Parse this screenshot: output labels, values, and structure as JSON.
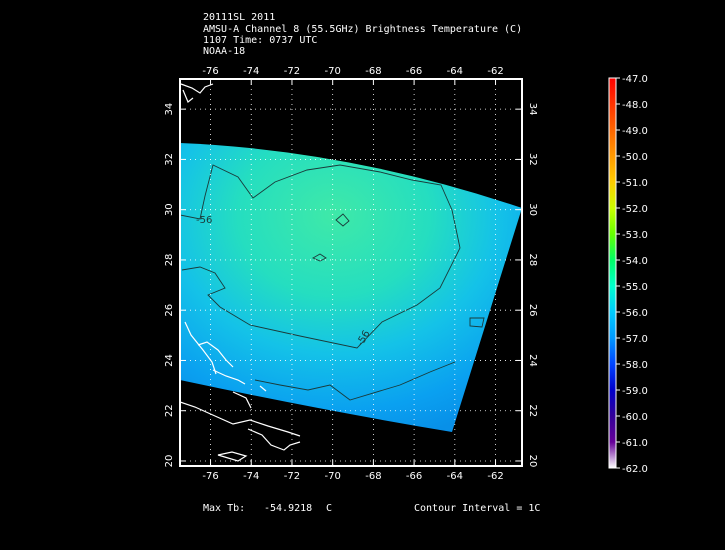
{
  "header": {
    "line1": "20111SL 2011",
    "line2": "AMSU-A Channel 8 (55.5GHz) Brightness Temperature (C)",
    "line3": "1107 Time: 0737 UTC",
    "line4": "NOAA-18"
  },
  "map": {
    "lon_ticks": [
      "-76",
      "-74",
      "-72",
      "-70",
      "-68",
      "-66",
      "-64",
      "-62"
    ],
    "lat_ticks": [
      "34",
      "32",
      "30",
      "28",
      "26",
      "24",
      "22",
      "20"
    ],
    "lon_range": [
      -77.5,
      -60.7
    ],
    "lat_range": [
      19.8,
      35.2
    ],
    "contour_labels": [
      "-56",
      "-56"
    ],
    "grid": "dotted"
  },
  "colorbar": {
    "labels": [
      "-47.0",
      "-48.0",
      "-49.0",
      "-50.0",
      "-51.0",
      "-52.0",
      "-53.0",
      "-54.0",
      "-55.0",
      "-56.0",
      "-57.0",
      "-58.0",
      "-59.0",
      "-60.0",
      "-61.0",
      "-62.0"
    ],
    "colors": [
      "#ff0000",
      "#ff3300",
      "#ff6600",
      "#ff9900",
      "#ffcc00",
      "#ccff00",
      "#66ff00",
      "#00ff66",
      "#00ffcc",
      "#00ccff",
      "#0099ff",
      "#0044ff",
      "#0000cc",
      "#330099",
      "#660099",
      "#ffffff"
    ]
  },
  "footer": {
    "max_label": "Max Tb:",
    "max_value": "-54.9218",
    "max_unit": "C",
    "contour": "Contour Interval = 1C"
  }
}
